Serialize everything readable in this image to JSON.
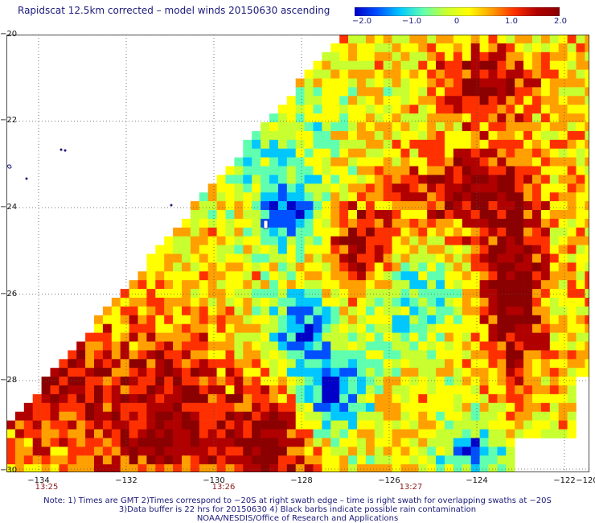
{
  "title": "Rapidscat 12.5km corrected – model winds 20150630 ascending",
  "colorbar": {
    "labels": [
      "−2.0",
      "−1.0",
      "0",
      "1.0",
      "2.0"
    ],
    "colors": [
      "#0000c8",
      "#0050ff",
      "#00c8ff",
      "#60ffb0",
      "#c8ff30",
      "#ffff00",
      "#ffa000",
      "#ff3000",
      "#b00000",
      "#8b0000"
    ]
  },
  "map": {
    "lat_labels": [
      "−20",
      "−22",
      "−24",
      "−26",
      "−28",
      "−30"
    ],
    "lon_labels": [
      "−134",
      "−132",
      "−130",
      "−128",
      "−126",
      "−124",
      "−122",
      "−120"
    ],
    "time_labels": [
      "13:25",
      "13:26",
      "13:27"
    ],
    "colors": {
      "low": "#0000c8",
      "mid": "#00c8ff",
      "zero": "#c8ff30",
      "high": "#ff3000",
      "max": "#8b0000",
      "grid": "#555555",
      "coast": "#1a1a7a"
    }
  },
  "notes": [
    "Note: 1) Times are GMT 2)Times correspond to −20S at right swath edge – time is right swath for overlapping swaths at −20S",
    "3)Data buffer is 22 hrs for 20150630 4) Black barbs indicate possible rain contamination",
    "NOAA/NESDIS/Office of Research and Applications"
  ]
}
